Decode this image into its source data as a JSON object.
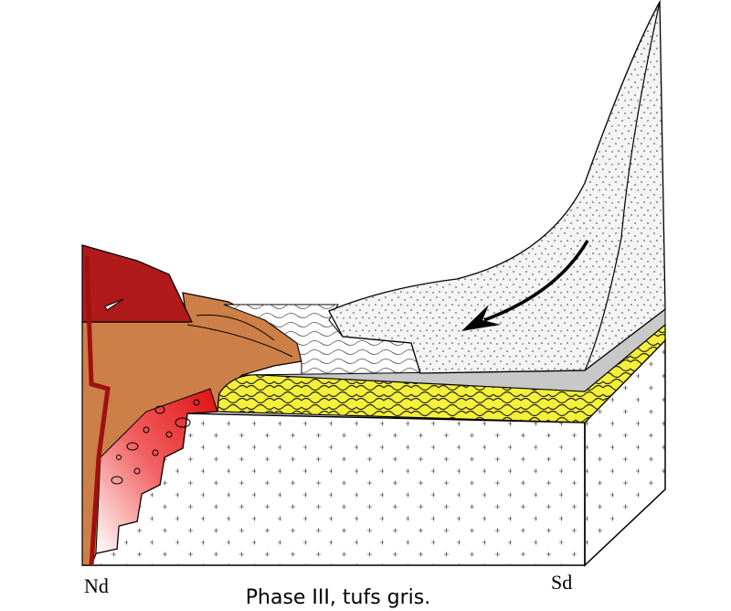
{
  "labels": {
    "left": "Nd",
    "right": "Sd"
  },
  "caption": "Phase III, tufs gris."
}
